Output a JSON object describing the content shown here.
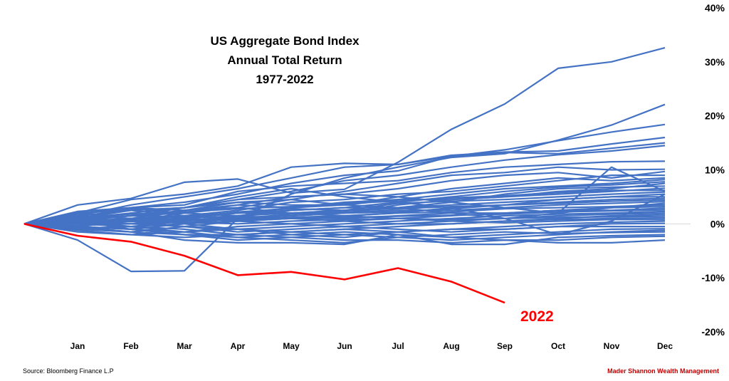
{
  "chart_data": {
    "type": "line",
    "title_lines": [
      "US Aggregate Bond Index",
      "Annual Total Return",
      "1977-2022"
    ],
    "categories": [
      "",
      "Jan",
      "Feb",
      "Mar",
      "Apr",
      "May",
      "Jun",
      "Jul",
      "Aug",
      "Sep",
      "Oct",
      "Nov",
      "Dec"
    ],
    "y_axis": {
      "min": -20,
      "max": 40,
      "step": 10,
      "suffix": "%",
      "position": "right"
    },
    "zero_line": true,
    "colors": {
      "series": "#4472c4",
      "highlight": "#ff0000",
      "zero_line": "#d9d9d9"
    },
    "series": [
      {
        "values": [
          0,
          3.5,
          4.7,
          7.7,
          8.3,
          5.7,
          6.4,
          11.4,
          17.5,
          22.2,
          28.8,
          30.0,
          32.6
        ]
      },
      {
        "values": [
          0,
          -3.0,
          -8.8,
          -8.7,
          1.0,
          5.5,
          8.5,
          10.5,
          12.3,
          13.0,
          15.5,
          18.3,
          22.1
        ]
      },
      {
        "values": [
          0,
          2.0,
          4.5,
          5.5,
          7.0,
          10.5,
          11.2,
          11.0,
          12.5,
          13.7,
          15.4,
          17.0,
          18.4
        ]
      },
      {
        "values": [
          0,
          1.5,
          3.5,
          5.0,
          6.5,
          8.5,
          10.5,
          11.0,
          12.7,
          13.3,
          13.5,
          14.8,
          16.0
        ]
      },
      {
        "values": [
          0,
          1.0,
          3.0,
          4.0,
          5.5,
          7.5,
          9.0,
          9.8,
          12.5,
          13.2,
          13.0,
          14.0,
          15.0
        ]
      },
      {
        "values": [
          0,
          0.5,
          2.0,
          3.0,
          4.5,
          6.0,
          8.0,
          9.0,
          10.5,
          11.8,
          12.8,
          13.5,
          14.5
        ]
      },
      {
        "values": [
          0,
          2.3,
          3.0,
          3.5,
          6.0,
          7.0,
          7.5,
          8.0,
          9.5,
          10.5,
          11.0,
          11.5,
          11.6
        ]
      },
      {
        "values": [
          0,
          1.0,
          1.5,
          2.0,
          3.0,
          4.5,
          6.0,
          7.5,
          9.0,
          9.5,
          10.5,
          10.0,
          10.1
        ]
      },
      {
        "values": [
          0,
          0.5,
          1.0,
          2.5,
          3.5,
          5.0,
          5.5,
          6.5,
          8.0,
          9.0,
          9.5,
          8.5,
          9.7
        ]
      },
      {
        "values": [
          0,
          1.5,
          2.5,
          1.5,
          2.5,
          4.0,
          4.5,
          5.5,
          6.0,
          7.0,
          8.0,
          9.0,
          9.0
        ]
      },
      {
        "values": [
          0,
          -0.5,
          0.5,
          1.5,
          2.0,
          3.0,
          3.5,
          5.0,
          6.5,
          7.5,
          8.5,
          8.0,
          8.5
        ]
      },
      {
        "values": [
          0,
          1.0,
          0.5,
          2.0,
          3.5,
          3.0,
          4.0,
          4.5,
          5.5,
          6.5,
          7.0,
          7.5,
          8.2
        ]
      },
      {
        "values": [
          0,
          0.0,
          1.0,
          0.5,
          1.5,
          2.5,
          3.0,
          4.0,
          5.0,
          6.0,
          6.8,
          7.2,
          7.8
        ]
      },
      {
        "values": [
          0,
          2.0,
          2.5,
          3.0,
          4.0,
          3.5,
          3.5,
          4.5,
          4.5,
          5.0,
          6.0,
          6.5,
          7.5
        ]
      },
      {
        "values": [
          0,
          0.5,
          0.0,
          1.0,
          2.0,
          2.0,
          2.5,
          3.0,
          4.0,
          5.5,
          6.5,
          6.8,
          7.0
        ]
      },
      {
        "values": [
          0,
          -0.5,
          -1.0,
          0.0,
          1.0,
          1.5,
          2.0,
          3.5,
          4.5,
          5.0,
          5.5,
          6.0,
          6.6
        ]
      },
      {
        "values": [
          0,
          1.2,
          1.8,
          2.2,
          2.8,
          3.2,
          3.8,
          4.2,
          4.8,
          5.2,
          5.8,
          6.2,
          6.2
        ]
      },
      {
        "values": [
          0,
          0.8,
          1.5,
          1.2,
          2.2,
          2.8,
          2.5,
          3.8,
          4.2,
          4.5,
          5.0,
          5.5,
          5.9
        ]
      },
      {
        "values": [
          0,
          -1.0,
          -1.5,
          -0.5,
          0.5,
          1.0,
          1.5,
          2.0,
          3.0,
          3.5,
          4.5,
          5.0,
          5.5
        ]
      },
      {
        "values": [
          0,
          1.5,
          1.0,
          1.5,
          2.0,
          2.5,
          3.0,
          3.0,
          3.5,
          4.0,
          4.5,
          5.0,
          5.0
        ]
      },
      {
        "values": [
          0,
          0.3,
          0.8,
          1.0,
          1.5,
          2.0,
          2.5,
          2.8,
          3.2,
          3.5,
          4.0,
          4.5,
          4.7
        ]
      },
      {
        "values": [
          0,
          -0.8,
          -0.5,
          0.5,
          1.2,
          1.5,
          2.0,
          2.2,
          2.8,
          3.5,
          3.8,
          4.2,
          4.4
        ]
      },
      {
        "values": [
          0,
          0.8,
          0.5,
          0.2,
          1.0,
          1.8,
          2.2,
          2.5,
          2.5,
          3.0,
          3.5,
          3.8,
          4.1
        ]
      },
      {
        "values": [
          0,
          1.8,
          3.0,
          2.5,
          4.0,
          4.5,
          3.5,
          3.0,
          2.0,
          1.0,
          2.0,
          3.0,
          3.8
        ]
      },
      {
        "values": [
          0,
          0.5,
          0.5,
          0.8,
          0.8,
          1.2,
          1.5,
          2.0,
          2.2,
          2.8,
          3.0,
          3.2,
          3.5
        ]
      },
      {
        "values": [
          0,
          -1.5,
          -2.0,
          -1.5,
          -0.5,
          0.0,
          0.5,
          1.0,
          1.5,
          2.0,
          2.5,
          3.0,
          3.2
        ]
      },
      {
        "values": [
          0,
          1.0,
          2.0,
          1.0,
          0.5,
          1.0,
          1.0,
          1.5,
          2.0,
          2.0,
          2.5,
          2.5,
          2.9
        ]
      },
      {
        "values": [
          0,
          0.2,
          0.4,
          0.6,
          0.8,
          1.0,
          1.2,
          1.4,
          1.6,
          1.8,
          2.2,
          2.4,
          2.6
        ]
      },
      {
        "values": [
          0,
          -0.5,
          -1.0,
          -1.5,
          -1.0,
          -0.5,
          0.0,
          0.5,
          1.0,
          1.5,
          1.8,
          2.0,
          2.3
        ]
      },
      {
        "values": [
          0,
          0.8,
          1.5,
          2.5,
          3.0,
          2.0,
          1.5,
          1.0,
          0.5,
          1.0,
          1.5,
          1.8,
          2.0
        ]
      },
      {
        "values": [
          0,
          2.0,
          2.8,
          2.0,
          1.5,
          1.0,
          0.5,
          0.0,
          0.0,
          0.5,
          1.0,
          1.5,
          1.7
        ]
      },
      {
        "values": [
          0,
          -0.3,
          0.0,
          0.3,
          0.0,
          0.5,
          0.8,
          1.0,
          0.8,
          1.0,
          1.2,
          1.3,
          1.4
        ]
      },
      {
        "values": [
          0,
          0.5,
          -0.5,
          -1.0,
          -2.0,
          -1.5,
          -1.0,
          -0.5,
          0.0,
          0.5,
          0.8,
          1.0,
          1.1
        ]
      },
      {
        "values": [
          0,
          -1.0,
          -0.5,
          0.0,
          0.5,
          0.0,
          -0.5,
          0.0,
          0.5,
          0.2,
          0.5,
          0.8,
          0.8
        ]
      },
      {
        "values": [
          0,
          0.5,
          0.0,
          -0.5,
          -1.0,
          -1.5,
          -1.0,
          -1.5,
          -1.0,
          -0.5,
          0.0,
          0.3,
          0.5
        ]
      },
      {
        "values": [
          0,
          -0.5,
          -1.0,
          -2.0,
          -3.0,
          -2.5,
          -2.0,
          -1.5,
          -1.0,
          -1.0,
          -0.5,
          0.0,
          0.1
        ]
      },
      {
        "values": [
          0,
          1.0,
          0.5,
          -0.5,
          -1.5,
          -1.0,
          -0.5,
          -1.0,
          -1.5,
          -1.0,
          -0.5,
          -0.5,
          -0.5
        ]
      },
      {
        "values": [
          0,
          0.0,
          -0.5,
          -1.5,
          -2.5,
          -2.0,
          -1.5,
          -2.0,
          -2.5,
          -2.0,
          -1.5,
          -1.0,
          -0.9
        ]
      },
      {
        "values": [
          0,
          -1.2,
          -2.0,
          -2.5,
          -2.0,
          -1.5,
          -2.0,
          -2.5,
          -3.0,
          -2.5,
          -2.0,
          -1.5,
          -1.2
        ]
      },
      {
        "values": [
          0,
          0.5,
          -1.0,
          -2.0,
          -2.5,
          -3.0,
          -3.5,
          -2.5,
          -2.0,
          -1.5,
          -1.8,
          -1.6,
          -1.5
        ]
      },
      {
        "values": [
          0,
          -0.5,
          -1.5,
          -3.0,
          -3.5,
          -3.5,
          -3.8,
          -2.0,
          -3.8,
          -3.8,
          -2.5,
          -2.2,
          -2.0
        ]
      },
      {
        "values": [
          0,
          1.5,
          1.0,
          0.0,
          -1.0,
          -2.0,
          -2.5,
          -1.5,
          -2.5,
          -3.0,
          -3.0,
          -2.5,
          -2.3
        ]
      },
      {
        "values": [
          0,
          -0.8,
          -1.5,
          -2.0,
          -2.0,
          -2.5,
          -3.0,
          -3.0,
          -3.5,
          -3.0,
          -3.5,
          -3.5,
          -3.0
        ]
      },
      {
        "values": [
          0,
          1.0,
          2.5,
          3.0,
          4.5,
          5.0,
          5.5,
          5.0,
          4.0,
          3.0,
          2.0,
          10.5,
          6.0
        ]
      },
      {
        "values": [
          0,
          0.5,
          1.5,
          3.0,
          5.0,
          6.5,
          5.0,
          4.0,
          3.0,
          1.0,
          -2.0,
          0.5,
          5.5
        ]
      }
    ],
    "highlight": {
      "name": "2022",
      "values": [
        0,
        -2.2,
        -3.3,
        -5.9,
        -9.5,
        -8.9,
        -10.3,
        -8.2,
        -10.7,
        -14.6
      ]
    }
  },
  "footer": {
    "source": "Source: Bloomberg Finance L.P",
    "brand": "Mader Shannon Wealth Management"
  }
}
